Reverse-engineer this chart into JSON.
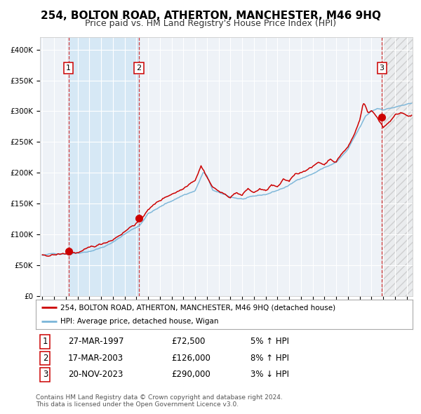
{
  "title": "254, BOLTON ROAD, ATHERTON, MANCHESTER, M46 9HQ",
  "subtitle": "Price paid vs. HM Land Registry's House Price Index (HPI)",
  "ylabel_ticks": [
    "£0",
    "£50K",
    "£100K",
    "£150K",
    "£200K",
    "£250K",
    "£300K",
    "£350K",
    "£400K"
  ],
  "ytick_values": [
    0,
    50000,
    100000,
    150000,
    200000,
    250000,
    300000,
    350000,
    400000
  ],
  "ylim": [
    0,
    420000
  ],
  "xlim_start": 1994.8,
  "xlim_end": 2026.5,
  "transactions": [
    {
      "num": 1,
      "date": "27-MAR-1997",
      "price": 72500,
      "x": 1997.23,
      "pct": "5%",
      "dir": "↑"
    },
    {
      "num": 2,
      "date": "17-MAR-2003",
      "price": 126000,
      "x": 2003.21,
      "pct": "8%",
      "dir": "↑"
    },
    {
      "num": 3,
      "date": "20-NOV-2023",
      "price": 290000,
      "x": 2023.88,
      "pct": "3%",
      "dir": "↓"
    }
  ],
  "legend_line1": "254, BOLTON ROAD, ATHERTON, MANCHESTER, M46 9HQ (detached house)",
  "legend_line2": "HPI: Average price, detached house, Wigan",
  "footer1": "Contains HM Land Registry data © Crown copyright and database right 2024.",
  "footer2": "This data is licensed under the Open Government Licence v3.0.",
  "hpi_color": "#7ab5d8",
  "price_color": "#cc0000",
  "bg_color": "#ffffff",
  "plot_bg": "#eef2f7",
  "shaded_color": "#d6e8f5",
  "hatch_color": "#e8e8e8",
  "grid_color": "#ffffff",
  "spine_color": "#cccccc",
  "label_fontsize": 7.5,
  "tick_fontsize": 7.5,
  "title_fontsize": 11,
  "subtitle_fontsize": 9
}
